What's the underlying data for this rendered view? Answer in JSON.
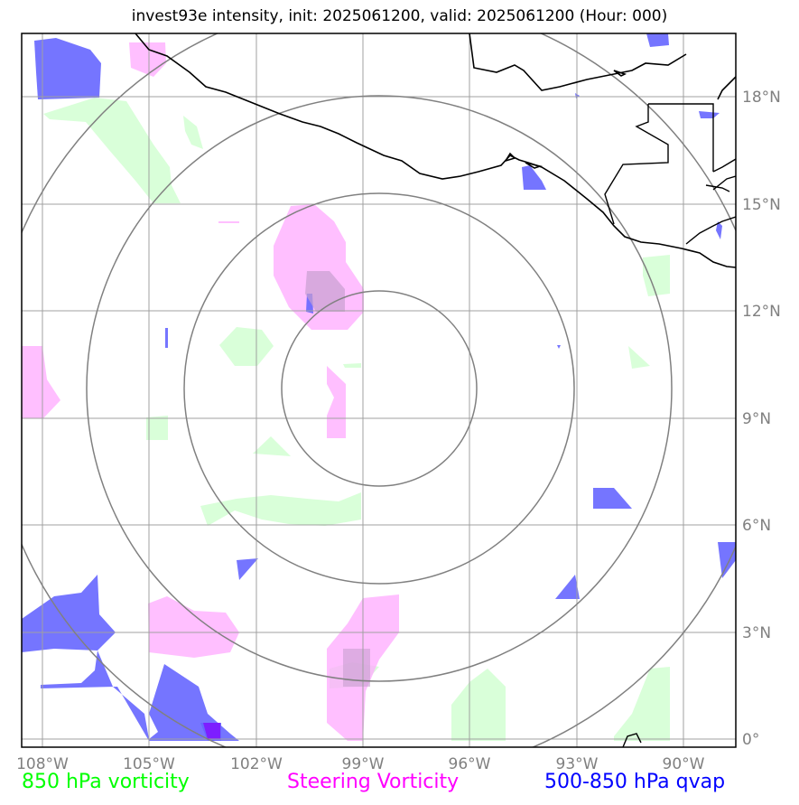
{
  "title": "invest93e intensity, init: 2025061200, valid: 2025061200 (Hour: 000)",
  "x_ticks": [
    "108°W",
    "105°W",
    "102°W",
    "99°W",
    "96°W",
    "93°W",
    "90°W"
  ],
  "y_ticks": [
    "18°N",
    "15°N",
    "12°N",
    "9°N",
    "6°N",
    "3°N",
    "0°"
  ],
  "legend": [
    {
      "label": "850 hPa vorticity",
      "color": "#00ff00"
    },
    {
      "label": "Steering Vorticity",
      "color": "#ff00ff"
    },
    {
      "label": "500-850 hPa qvap",
      "color": "#0000ff"
    }
  ],
  "colors": {
    "vorticity_fill": "#ccffcc",
    "steering_fill": "#ffaaff",
    "qvap_fill": "#6666ff",
    "grid": "#a0a0a0",
    "range_rings": "#808080",
    "coastline": "#000000"
  }
}
